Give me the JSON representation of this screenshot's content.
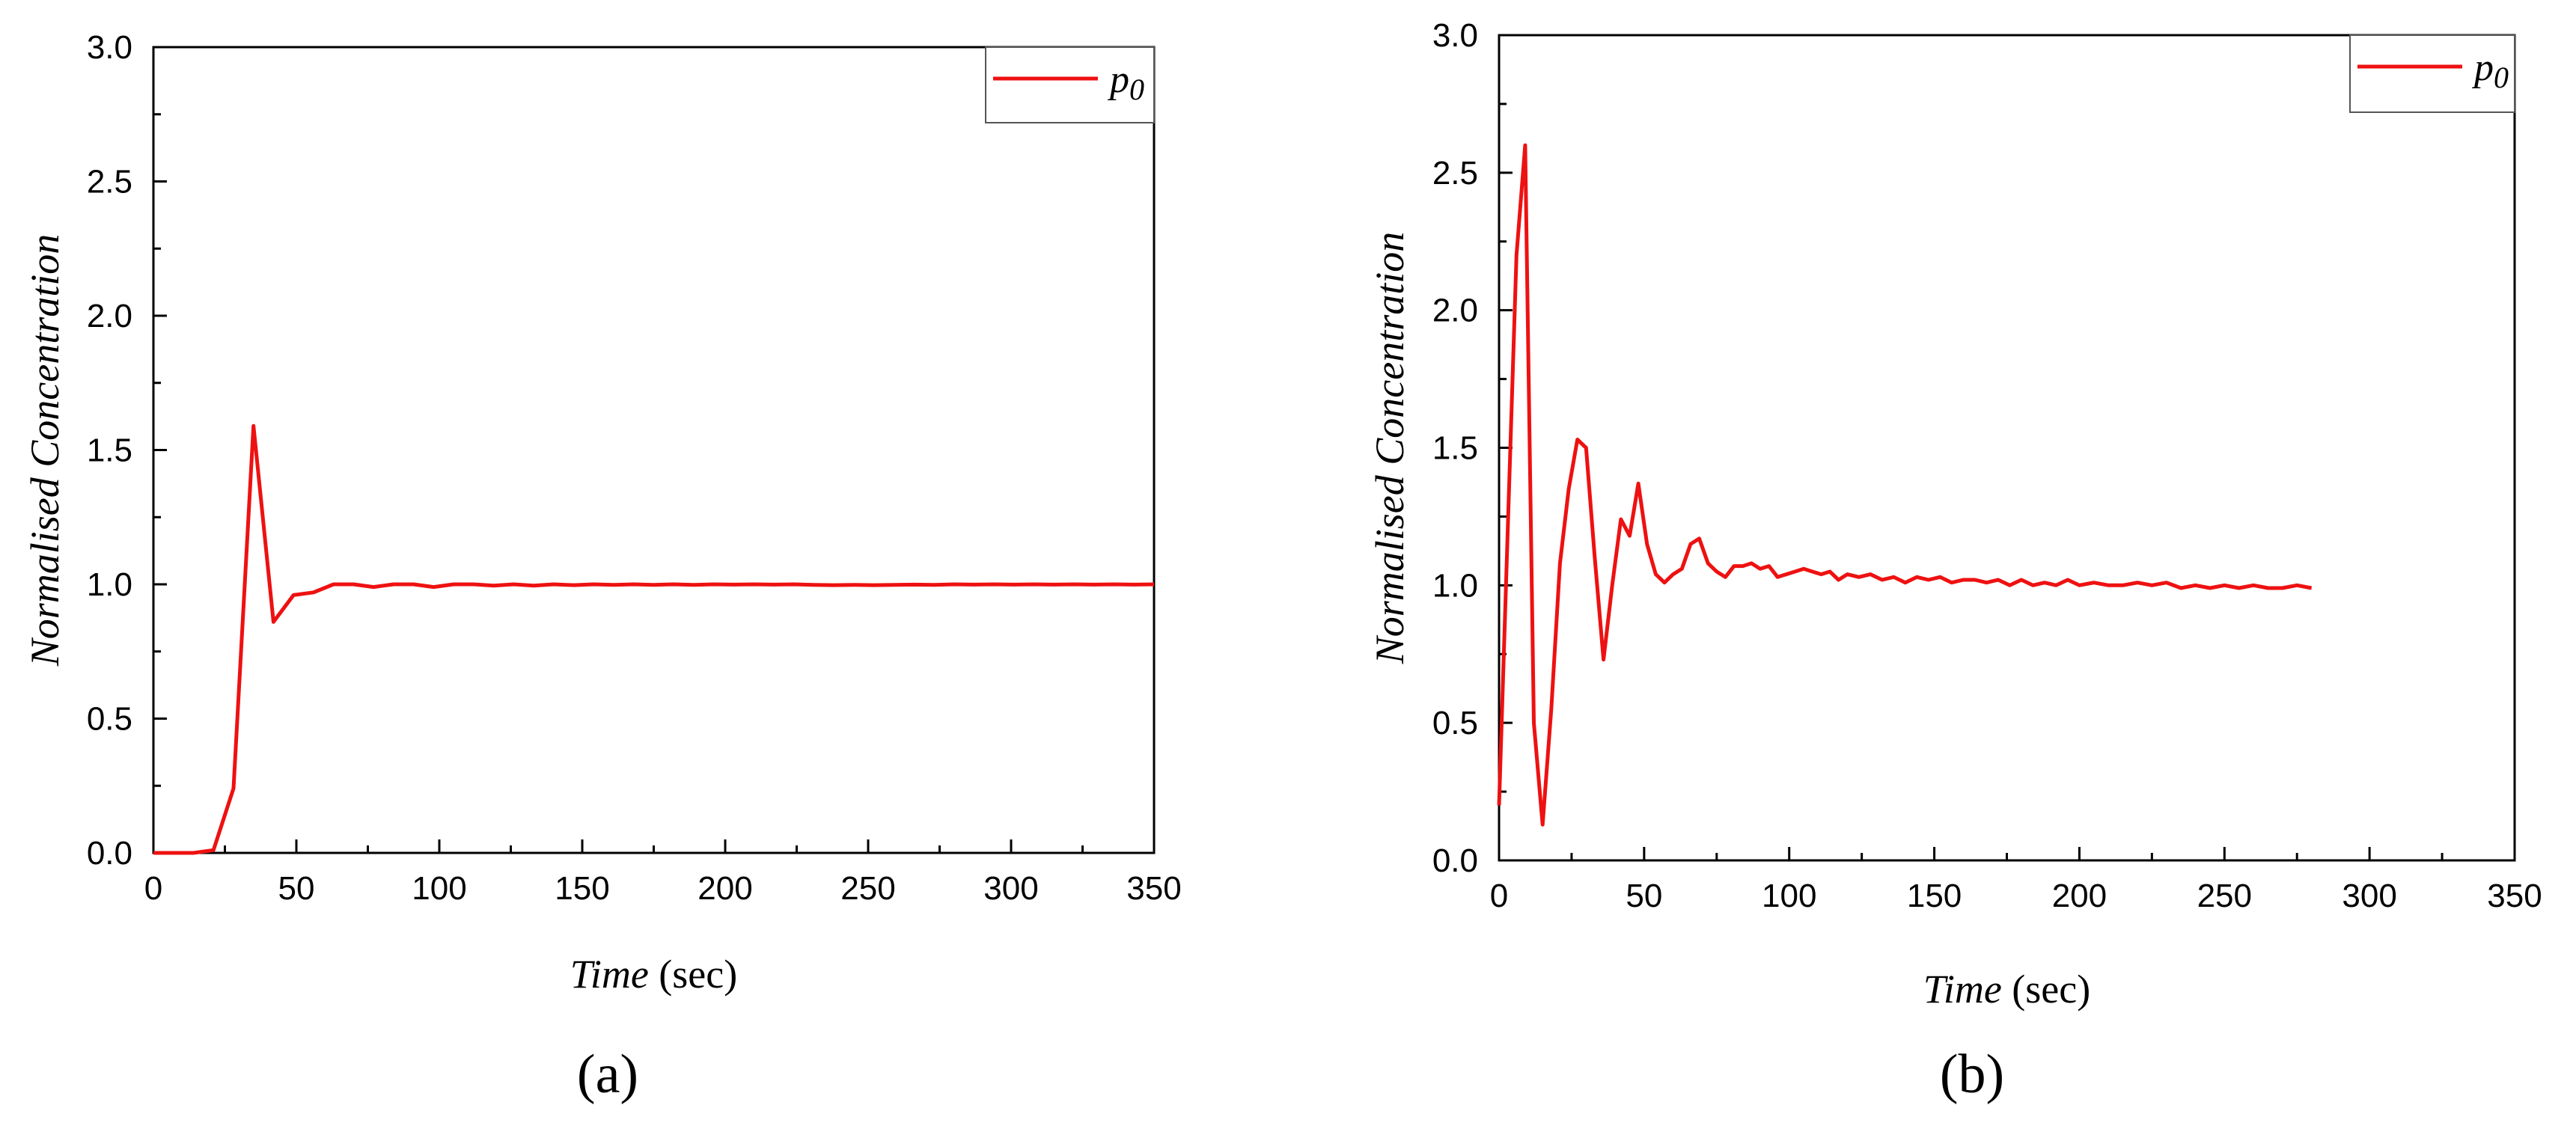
{
  "chart_data": [
    {
      "type": "line",
      "panel_label": "(a)",
      "xlabel_italic": "Time",
      "xlabel_unit": " (sec)",
      "ylabel": "Normalised Concentration",
      "xlim": [
        0,
        350
      ],
      "ylim": [
        0,
        3.0
      ],
      "x_ticks": [
        0,
        50,
        100,
        150,
        200,
        250,
        300,
        350
      ],
      "x_tick_labels": [
        "0",
        "50",
        "100",
        "150",
        "200",
        "250",
        "300",
        "350"
      ],
      "y_ticks": [
        0,
        0.5,
        1.0,
        1.5,
        2.0,
        2.5,
        3.0
      ],
      "y_tick_labels": [
        "0.0",
        "0.5",
        "1.0",
        "1.5",
        "2.0",
        "2.5",
        "3.0"
      ],
      "grid": false,
      "legend": {
        "placement": "top-right",
        "entries": [
          {
            "main": "p",
            "sub": "0"
          }
        ]
      },
      "series": [
        {
          "name": "p0",
          "color": "#ee1111",
          "x": [
            0,
            7,
            14,
            21,
            28,
            35,
            42,
            49,
            56,
            63,
            70,
            77,
            84,
            91,
            98,
            105,
            112,
            119,
            126,
            133,
            140,
            147,
            154,
            161,
            168,
            175,
            182,
            189,
            196,
            203,
            210,
            217,
            224,
            231,
            238,
            245,
            252,
            259,
            266,
            273,
            280,
            287,
            294,
            301,
            308,
            315,
            322,
            329,
            336,
            343,
            350
          ],
          "y": [
            0,
            0,
            0,
            0.01,
            0.24,
            1.59,
            0.86,
            0.96,
            0.97,
            1.0,
            1.0,
            0.99,
            1.0,
            1.0,
            0.99,
            1.0,
            1.0,
            0.995,
            1.0,
            0.995,
            1.0,
            0.997,
            1.0,
            0.998,
            1.0,
            0.998,
            1.0,
            0.998,
            1.0,
            0.999,
            1.0,
            0.999,
            1.0,
            0.998,
            0.997,
            0.998,
            0.997,
            0.998,
            0.999,
            0.998,
            1.0,
            0.999,
            1.0,
            0.999,
            1.0,
            0.999,
            1.0,
            0.999,
            1.0,
            0.999,
            1.0
          ]
        }
      ]
    },
    {
      "type": "line",
      "panel_label": "(b)",
      "xlabel_italic": "Time",
      "xlabel_unit": " (sec)",
      "ylabel": "Normalised Concentration",
      "xlim": [
        0,
        350
      ],
      "ylim": [
        0,
        3.0
      ],
      "x_ticks": [
        0,
        50,
        100,
        150,
        200,
        250,
        300,
        350
      ],
      "x_tick_labels": [
        "0",
        "50",
        "100",
        "150",
        "200",
        "250",
        "300",
        "350"
      ],
      "y_ticks": [
        0,
        0.5,
        1.0,
        1.5,
        2.0,
        2.5,
        3.0
      ],
      "y_tick_labels": [
        "0.0",
        "0.5",
        "1.0",
        "1.5",
        "2.0",
        "2.5",
        "3.0"
      ],
      "grid": false,
      "legend": {
        "placement": "top-right",
        "entries": [
          {
            "main": "p",
            "sub": "0"
          }
        ]
      },
      "series": [
        {
          "name": "p0",
          "color": "#ee1111",
          "x": [
            0,
            3,
            6,
            9,
            12,
            15,
            18,
            21,
            24,
            27,
            30,
            33,
            36,
            39,
            42,
            45,
            48,
            51,
            54,
            57,
            60,
            63,
            66,
            69,
            72,
            75,
            78,
            81,
            84,
            87,
            90,
            93,
            96,
            99,
            102,
            105,
            108,
            111,
            114,
            117,
            120,
            124,
            128,
            132,
            136,
            140,
            144,
            148,
            152,
            156,
            160,
            164,
            168,
            172,
            176,
            180,
            184,
            188,
            192,
            196,
            200,
            205,
            210,
            215,
            220,
            225,
            230,
            235,
            240,
            245,
            250,
            255,
            260,
            265,
            270,
            275,
            280
          ],
          "y": [
            0.2,
            1.2,
            2.2,
            2.6,
            0.5,
            0.13,
            0.55,
            1.08,
            1.35,
            1.53,
            1.5,
            1.1,
            0.73,
            1.0,
            1.24,
            1.18,
            1.37,
            1.15,
            1.04,
            1.01,
            1.04,
            1.06,
            1.15,
            1.17,
            1.08,
            1.05,
            1.03,
            1.07,
            1.07,
            1.08,
            1.06,
            1.07,
            1.03,
            1.04,
            1.05,
            1.06,
            1.05,
            1.04,
            1.05,
            1.02,
            1.04,
            1.03,
            1.04,
            1.02,
            1.03,
            1.01,
            1.03,
            1.02,
            1.03,
            1.01,
            1.02,
            1.02,
            1.01,
            1.02,
            1.0,
            1.02,
            1.0,
            1.01,
            1.0,
            1.02,
            1.0,
            1.01,
            1.0,
            1.0,
            1.01,
            1.0,
            1.01,
            0.99,
            1.0,
            0.99,
            1.0,
            0.99,
            1.0,
            0.99,
            0.99,
            1.0,
            0.99
          ]
        }
      ]
    }
  ]
}
